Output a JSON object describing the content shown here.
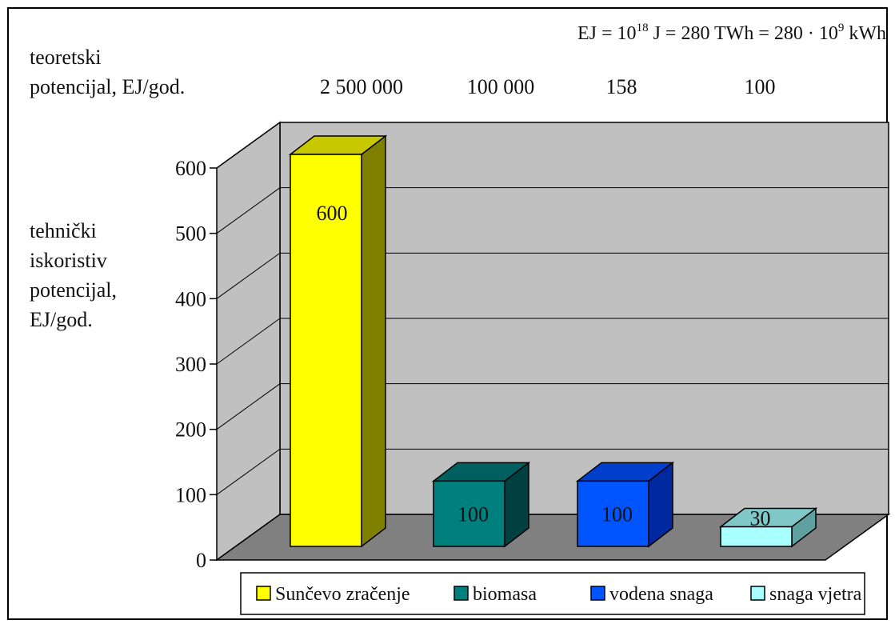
{
  "formula": {
    "prefix": "EJ = 10",
    "exp1": "18",
    "middle": " J = 280 TWh = 280 · 10",
    "exp2": "9",
    "suffix": " kWh"
  },
  "theoretical": {
    "label_line1": "teoretski",
    "label_line2": "potencijal, EJ/god.",
    "values": [
      "2 500 000",
      "100 000",
      "158",
      "100"
    ]
  },
  "ylabel_lines": [
    "tehnički",
    "iskoristiv",
    "potencijal,",
    "EJ/god."
  ],
  "chart_data": {
    "type": "bar",
    "categories": [
      "Sunčevo zračenje",
      "biomasa",
      "vodena snaga",
      "snaga vjetra"
    ],
    "values": [
      600,
      100,
      100,
      30
    ],
    "data_labels": [
      "600",
      "100",
      "100",
      "30"
    ],
    "ylim": [
      0,
      600
    ],
    "yticks": [
      0,
      100,
      200,
      300,
      400,
      500,
      600
    ],
    "grid": true,
    "legend_position": "bottom",
    "colors": {
      "front": [
        "#ffff00",
        "#007f7f",
        "#0055ff",
        "#aaffff"
      ],
      "top": [
        "#c8c800",
        "#005f5f",
        "#003fcc",
        "#80c8c8"
      ],
      "side": [
        "#7f7f00",
        "#004040",
        "#0028a0",
        "#5fa0a0"
      ]
    }
  }
}
